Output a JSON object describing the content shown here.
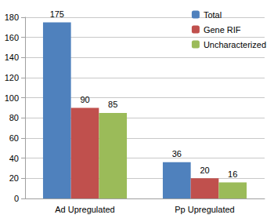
{
  "chart_data": {
    "type": "bar",
    "categories": [
      "Ad Upregulated",
      "Pp Upregulated"
    ],
    "series": [
      {
        "name": "Total",
        "color": "#4f81bd",
        "values": [
          175,
          36
        ]
      },
      {
        "name": "Gene RIF",
        "color": "#c0504d",
        "values": [
          90,
          20
        ]
      },
      {
        "name": "Uncharacterized",
        "color": "#9bbb59",
        "values": [
          85,
          16
        ]
      }
    ],
    "ylim": [
      0,
      180
    ],
    "yticks": [
      0,
      20,
      40,
      60,
      80,
      100,
      120,
      140,
      160,
      180
    ],
    "grid": true,
    "legend": "top-right",
    "data_labels": true
  }
}
